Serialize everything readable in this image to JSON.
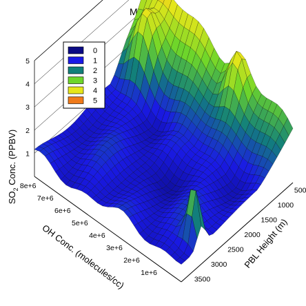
{
  "chart_data": {
    "type": "surface3d",
    "title": "March 2009",
    "zlabel": "SO2 Conc. (PPBV)",
    "zlabel_main": "SO",
    "zlabel_sub": "2",
    "zlabel_rest": " Conc. (PPBV)",
    "xlabel": "OH Conc. (molecules/cc)",
    "ylabel": "PBL Height (m)",
    "x_ticks": [
      "1e+6",
      "2e+6",
      "3e+6",
      "4e+6",
      "5e+6",
      "6e+6",
      "7e+6",
      "8e+6"
    ],
    "x_tick_values": [
      1000000,
      2000000,
      3000000,
      4000000,
      5000000,
      6000000,
      7000000,
      8000000
    ],
    "y_ticks": [
      "500",
      "1000",
      "1500",
      "2000",
      "2500",
      "3000",
      "3500"
    ],
    "y_tick_values": [
      500,
      1000,
      1500,
      2000,
      2500,
      3000,
      3500
    ],
    "z_ticks": [
      "1",
      "2",
      "3",
      "4",
      "5"
    ],
    "z_tick_values": [
      1,
      2,
      3,
      4,
      5
    ],
    "xlim": [
      0,
      8500000
    ],
    "ylim": [
      250,
      3600
    ],
    "zlim": [
      0,
      5
    ],
    "grid": true,
    "legend_position": "top-left",
    "legend": [
      {
        "label": "0",
        "color": "#0a0a84"
      },
      {
        "label": "1",
        "color": "#1a1ae6"
      },
      {
        "label": "2",
        "color": "#12807a"
      },
      {
        "label": "3",
        "color": "#6ed62a"
      },
      {
        "label": "4",
        "color": "#e6e61a"
      },
      {
        "label": "5",
        "color": "#f07a1a"
      }
    ]
  }
}
